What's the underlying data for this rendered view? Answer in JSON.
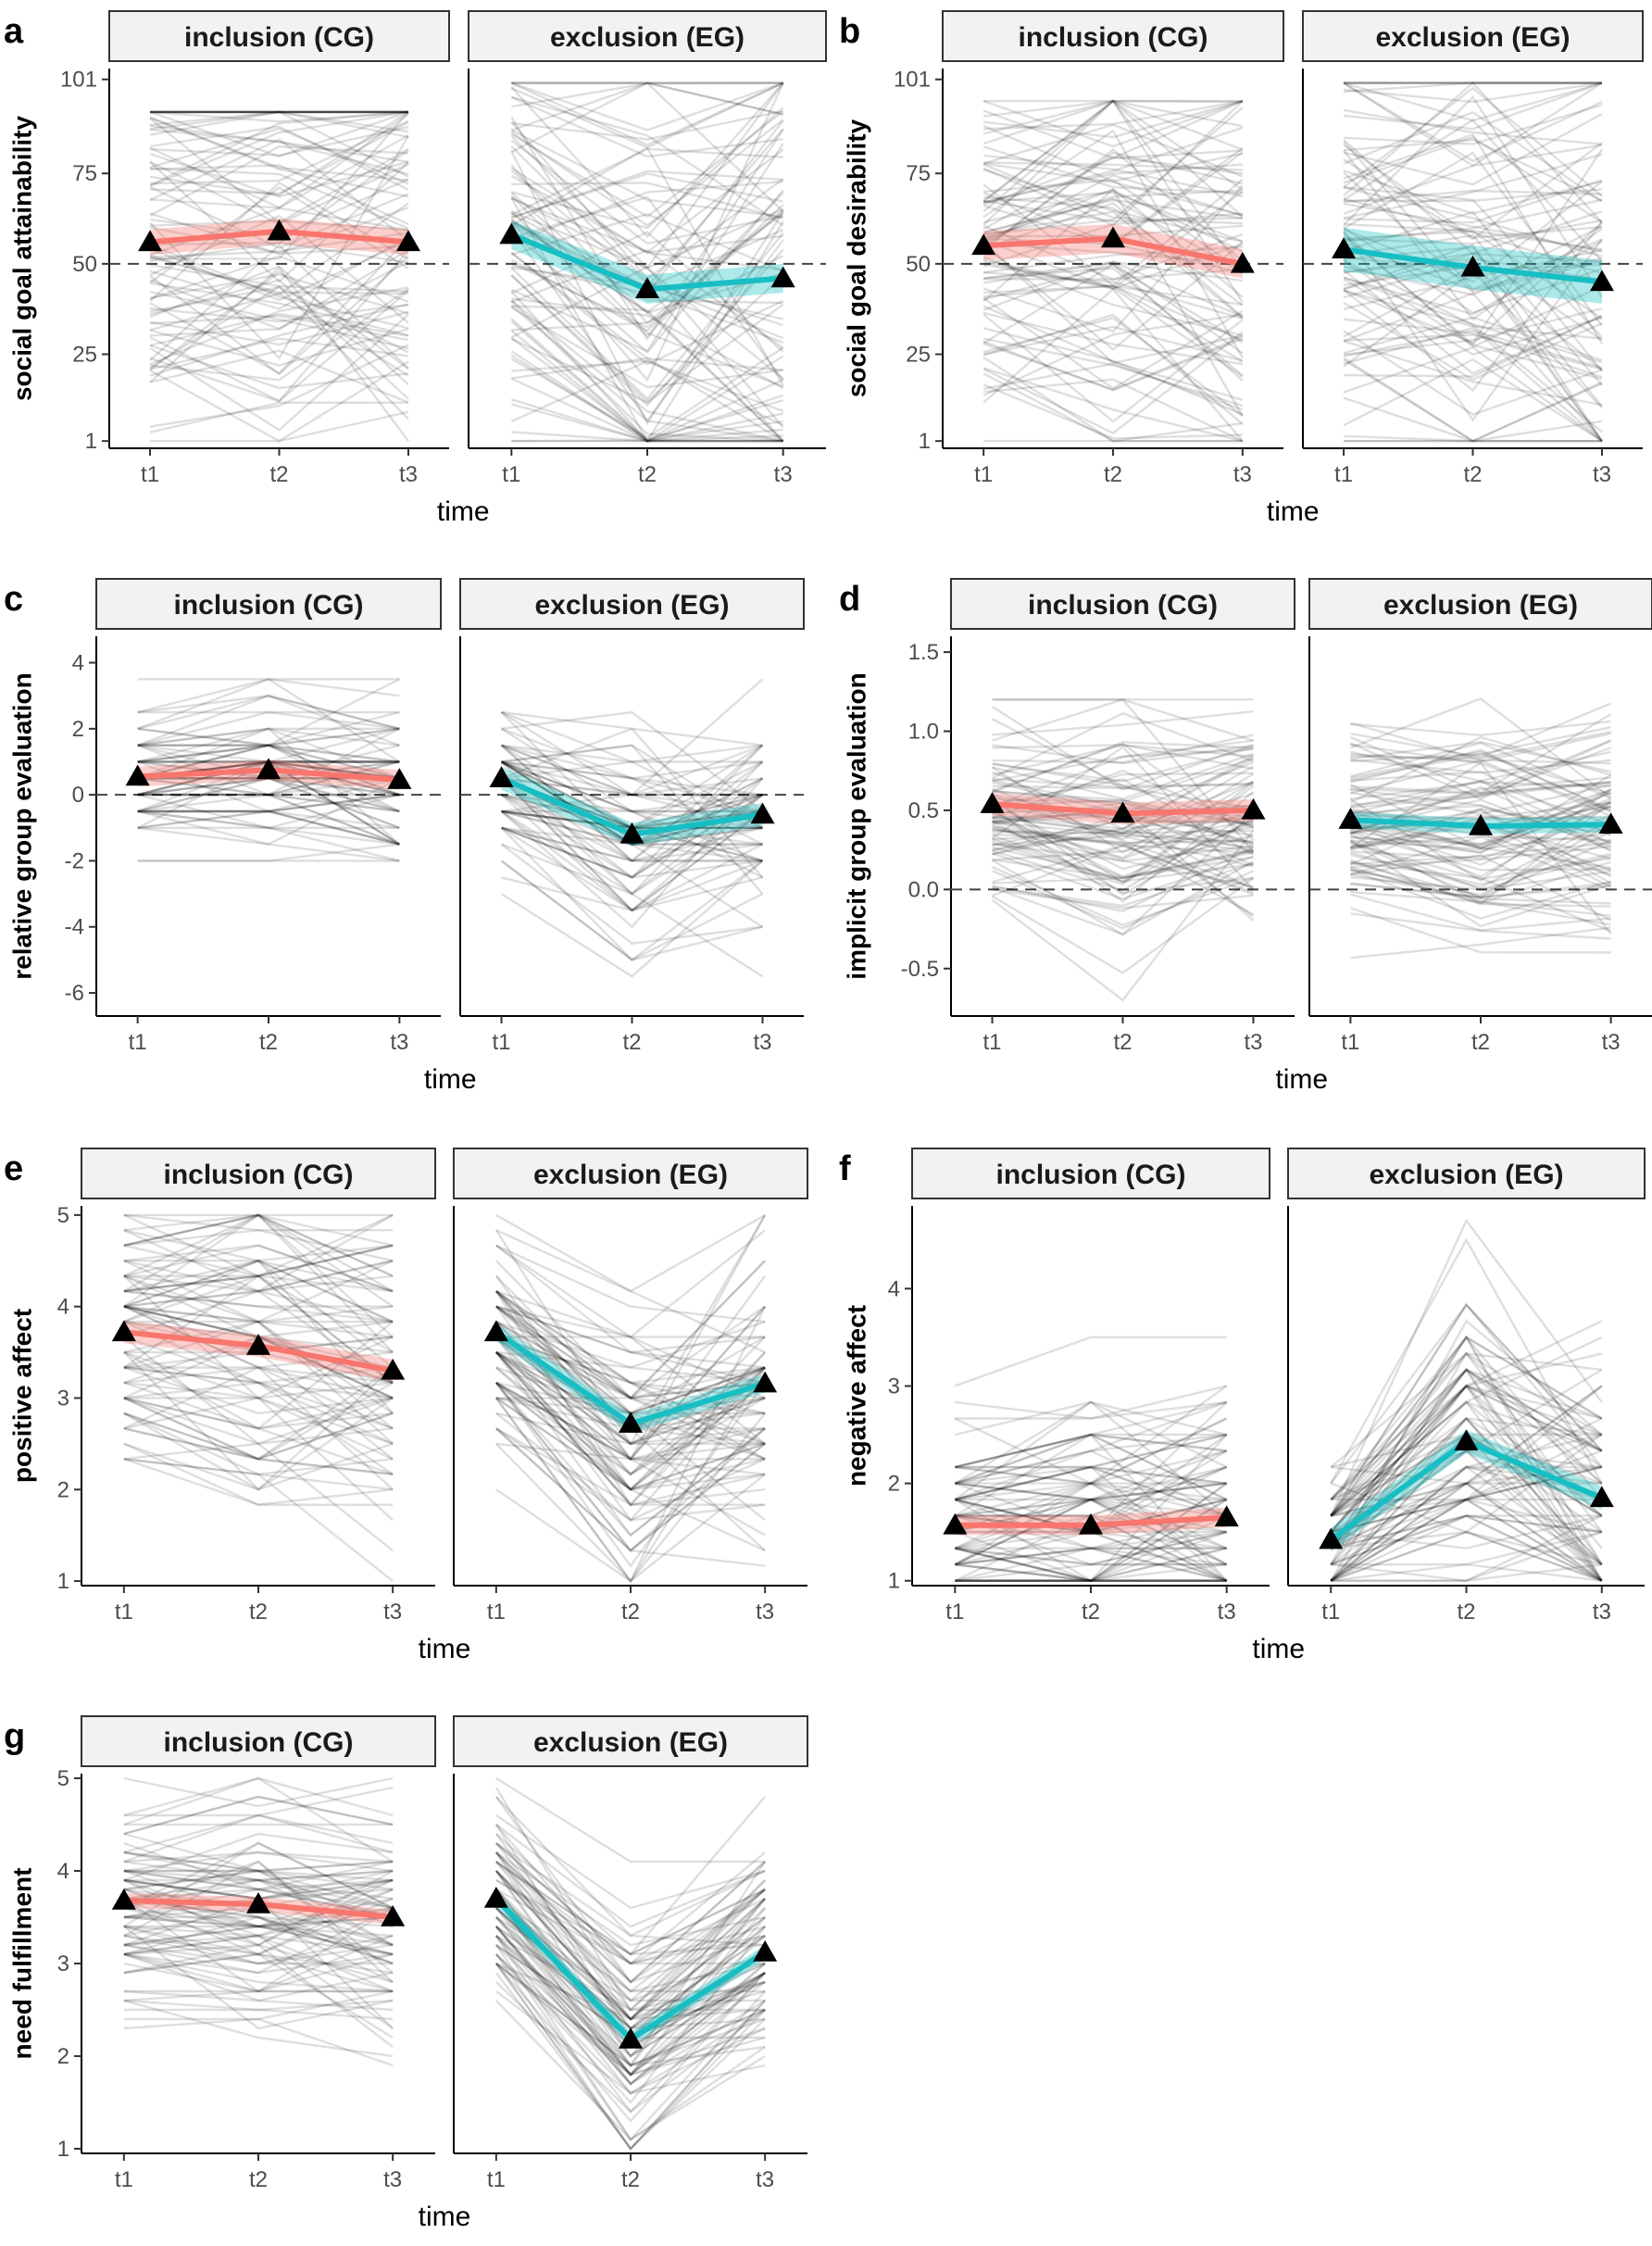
{
  "colors": {
    "inclusion": "#F8766D",
    "exclusion": "#17BFC4",
    "strip_fill": "#F2F2F2"
  },
  "chart_data": [
    {
      "id": "a",
      "letter": "a",
      "type": "line",
      "ylabel": "social goal attainability",
      "xlabel": "time",
      "ylim": [
        -1,
        104
      ],
      "yticks": [
        1,
        25,
        50,
        75,
        101
      ],
      "ref": 50,
      "x": [
        "t1",
        "t2",
        "t3"
      ],
      "facets": [
        {
          "label": "inclusion (CG)",
          "group": "inclusion",
          "means": [
            56,
            59,
            56
          ],
          "ci": 3.5,
          "individual": {
            "seed": 11,
            "n": 90,
            "min": 1,
            "max": 92,
            "center": 57,
            "spread": 26,
            "noise": 14,
            "slope": [
              0,
              0
            ],
            "step": 0
          }
        },
        {
          "label": "exclusion (EG)",
          "group": "exclusion",
          "means": [
            58,
            43,
            46
          ],
          "ci": 4,
          "individual": {
            "seed": 12,
            "n": 90,
            "min": 1,
            "max": 100,
            "center": 57,
            "spread": 26,
            "noise": 22,
            "slope": [
              -15,
              3
            ],
            "step": 0
          }
        }
      ]
    },
    {
      "id": "b",
      "letter": "b",
      "type": "line",
      "ylabel": "social goal desirability",
      "xlabel": "time",
      "ylim": [
        -1,
        104
      ],
      "yticks": [
        1,
        25,
        50,
        75,
        101
      ],
      "ref": 50,
      "x": [
        "t1",
        "t2",
        "t3"
      ],
      "facets": [
        {
          "label": "inclusion (CG)",
          "group": "inclusion",
          "means": [
            55,
            57,
            50
          ],
          "ci": 4,
          "individual": {
            "seed": 21,
            "n": 90,
            "min": 1,
            "max": 95,
            "center": 54,
            "spread": 27,
            "noise": 16,
            "slope": [
              1,
              -6
            ],
            "step": 0
          }
        },
        {
          "label": "exclusion (EG)",
          "group": "exclusion",
          "means": [
            54,
            49,
            45
          ],
          "ci": 6,
          "individual": {
            "seed": 22,
            "n": 90,
            "min": 1,
            "max": 100,
            "center": 54,
            "spread": 28,
            "noise": 18,
            "slope": [
              -5,
              -4
            ],
            "step": 0
          }
        }
      ]
    },
    {
      "id": "c",
      "letter": "c",
      "type": "line",
      "ylabel": "relative group evaluation",
      "xlabel": "time",
      "ylim": [
        -6.7,
        4.8
      ],
      "yticks": [
        -6,
        -4,
        -2,
        0,
        2,
        4
      ],
      "ref": 0,
      "x": [
        "t1",
        "t2",
        "t3"
      ],
      "facets": [
        {
          "label": "inclusion (CG)",
          "group": "inclusion",
          "means": [
            0.55,
            0.75,
            0.45
          ],
          "ci": 0.3,
          "individual": {
            "seed": 31,
            "n": 80,
            "min": -2,
            "max": 4,
            "center": 0.5,
            "spread": 1,
            "noise": 0.7,
            "slope": [
              0.2,
              -0.3
            ],
            "step": 0.5
          }
        },
        {
          "label": "exclusion (EG)",
          "group": "exclusion",
          "means": [
            0.5,
            -1.2,
            -0.6
          ],
          "ci": 0.35,
          "individual": {
            "seed": 32,
            "n": 80,
            "min": -6.3,
            "max": 4.6,
            "center": 0.5,
            "spread": 1.1,
            "noise": 1.3,
            "slope": [
              -1.7,
              0.6
            ],
            "step": 0.5
          }
        }
      ]
    },
    {
      "id": "d",
      "letter": "d",
      "type": "line",
      "ylabel": "implicit group evaluation",
      "xlabel": "time",
      "ylim": [
        -0.8,
        1.6
      ],
      "yticks": [
        -0.5,
        0.0,
        0.5,
        1.0,
        1.5
      ],
      "yticklabels": [
        "-0.5",
        "0.0",
        "0.5",
        "1.0",
        "1.5"
      ],
      "ref": 0,
      "x": [
        "t1",
        "t2",
        "t3"
      ],
      "facets": [
        {
          "label": "inclusion (CG)",
          "group": "inclusion",
          "means": [
            0.54,
            0.48,
            0.5
          ],
          "ci": 0.07,
          "individual": {
            "seed": 41,
            "n": 90,
            "min": -0.7,
            "max": 1.2,
            "center": 0.5,
            "spread": 0.28,
            "noise": 0.25,
            "slope": [
              -0.06,
              0.02
            ],
            "step": 0
          }
        },
        {
          "label": "exclusion (EG)",
          "group": "exclusion",
          "means": [
            0.44,
            0.4,
            0.41
          ],
          "ci": 0.05,
          "individual": {
            "seed": 42,
            "n": 90,
            "min": -0.45,
            "max": 1.45,
            "center": 0.42,
            "spread": 0.26,
            "noise": 0.22,
            "slope": [
              -0.04,
              0.01
            ],
            "step": 0
          }
        }
      ]
    },
    {
      "id": "e",
      "letter": "e",
      "type": "line",
      "ylabel": "positive affect",
      "xlabel": "time",
      "ylim": [
        0.95,
        5.1
      ],
      "yticks": [
        1,
        2,
        3,
        4,
        5
      ],
      "ref": null,
      "x": [
        "t1",
        "t2",
        "t3"
      ],
      "facets": [
        {
          "label": "inclusion (CG)",
          "group": "inclusion",
          "means": [
            3.72,
            3.57,
            3.3
          ],
          "ci": 0.12,
          "individual": {
            "seed": 51,
            "n": 90,
            "min": 1,
            "max": 5,
            "center": 3.6,
            "spread": 0.7,
            "noise": 0.5,
            "slope": [
              -0.15,
              -0.27
            ],
            "step": 0.1667
          }
        },
        {
          "label": "exclusion (EG)",
          "group": "exclusion",
          "means": [
            3.72,
            2.72,
            3.16
          ],
          "ci": 0.1,
          "individual": {
            "seed": 52,
            "n": 90,
            "min": 1,
            "max": 5,
            "center": 3.7,
            "spread": 0.6,
            "noise": 0.6,
            "slope": [
              -1.0,
              0.44
            ],
            "step": 0.1667
          }
        }
      ]
    },
    {
      "id": "f",
      "letter": "f",
      "type": "line",
      "ylabel": "negative affect",
      "xlabel": "time",
      "ylim": [
        0.95,
        4.85
      ],
      "yticks": [
        1,
        2,
        3,
        4
      ],
      "ref": null,
      "x": [
        "t1",
        "t2",
        "t3"
      ],
      "facets": [
        {
          "label": "inclusion (CG)",
          "group": "inclusion",
          "means": [
            1.57,
            1.57,
            1.65
          ],
          "ci": 0.1,
          "individual": {
            "seed": 61,
            "n": 90,
            "min": 1,
            "max": 4.2,
            "center": 1.6,
            "spread": 0.55,
            "noise": 0.45,
            "slope": [
              0,
              0.08
            ],
            "step": 0.1667
          }
        },
        {
          "label": "exclusion (EG)",
          "group": "exclusion",
          "means": [
            1.42,
            2.43,
            1.85
          ],
          "ci": 0.12,
          "individual": {
            "seed": 62,
            "n": 90,
            "min": 1,
            "max": 4.7,
            "center": 1.45,
            "spread": 0.4,
            "noise": 0.75,
            "slope": [
              1.0,
              -0.58
            ],
            "step": 0.1667
          }
        }
      ]
    },
    {
      "id": "g",
      "letter": "g",
      "type": "line",
      "ylabel": "need fulfillment",
      "xlabel": "time",
      "ylim": [
        0.95,
        5.05
      ],
      "yticks": [
        1,
        2,
        3,
        4,
        5
      ],
      "ref": null,
      "x": [
        "t1",
        "t2",
        "t3"
      ],
      "facets": [
        {
          "label": "inclusion (CG)",
          "group": "inclusion",
          "means": [
            3.68,
            3.64,
            3.5
          ],
          "ci": 0.08,
          "individual": {
            "seed": 71,
            "n": 90,
            "min": 1.3,
            "max": 5,
            "center": 3.6,
            "spread": 0.6,
            "noise": 0.35,
            "slope": [
              -0.04,
              -0.14
            ],
            "step": 0.1
          }
        },
        {
          "label": "exclusion (EG)",
          "group": "exclusion",
          "means": [
            3.7,
            2.18,
            3.12
          ],
          "ci": 0.08,
          "individual": {
            "seed": 72,
            "n": 90,
            "min": 1,
            "max": 5,
            "center": 3.7,
            "spread": 0.55,
            "noise": 0.45,
            "slope": [
              -1.5,
              0.94
            ],
            "step": 0.1
          }
        }
      ]
    }
  ]
}
